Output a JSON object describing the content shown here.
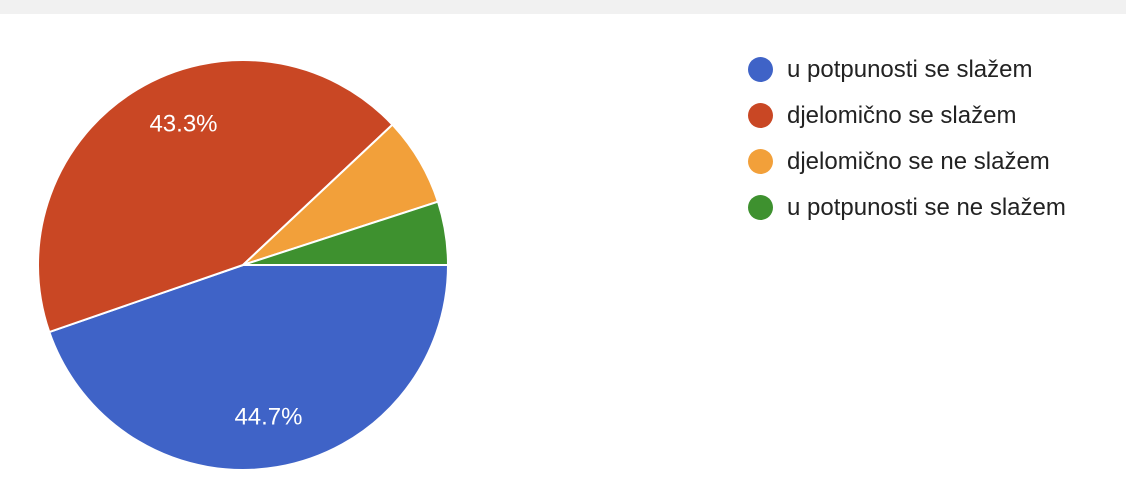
{
  "chart_data": {
    "type": "pie",
    "categories": [
      "u potpunosti se slažem",
      "djelomično se slažem",
      "djelomično se ne slažem",
      "u potpunosti se ne slažem"
    ],
    "values": [
      44.7,
      43.3,
      7.0,
      5.0
    ],
    "data_labels": [
      "44.7%",
      "43.3%",
      "",
      ""
    ],
    "colors": [
      "#3f63c7",
      "#c94724",
      "#f2a03a",
      "#3e912f"
    ],
    "legend_placement": "right"
  }
}
